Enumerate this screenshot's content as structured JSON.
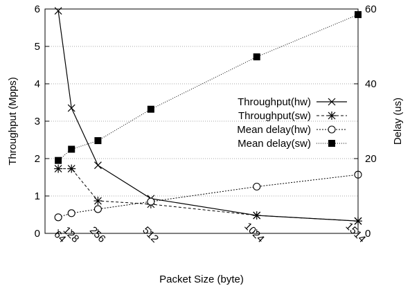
{
  "chart_data": {
    "type": "line",
    "xlabel": "Packet Size (byte)",
    "ylabel": "Throughput (Mpps)",
    "y2label": "Delay (us)",
    "x_ticks": [
      64,
      128,
      256,
      512,
      1024,
      1514
    ],
    "xlim": [
      0,
      1514
    ],
    "ylim": [
      0,
      6
    ],
    "y2lim": [
      0,
      60
    ],
    "y_ticks": [
      0,
      1,
      2,
      3,
      4,
      5,
      6
    ],
    "y2_ticks": [
      0,
      20,
      40,
      60
    ],
    "grid": "horizontal dotted lines at left-axis ticks",
    "legend_position": "center-right",
    "series": [
      {
        "name": "Throughput(hw)",
        "axis": "left",
        "marker": "x",
        "line": "solid",
        "color": "#000000",
        "x": [
          64,
          128,
          256,
          512,
          1024,
          1514
        ],
        "y": [
          5.95,
          3.35,
          1.82,
          0.93,
          0.48,
          0.33
        ]
      },
      {
        "name": "Throughput(sw)",
        "axis": "left",
        "marker": "asterisk",
        "line": "dashed",
        "color": "#000000",
        "x": [
          64,
          128,
          256,
          512,
          1024,
          1514
        ],
        "y": [
          1.73,
          1.73,
          0.87,
          0.78,
          0.48,
          0.33
        ]
      },
      {
        "name": "Mean delay(hw)",
        "axis": "right",
        "marker": "open-circle",
        "line": "dotted",
        "color": "#000000",
        "x": [
          64,
          128,
          256,
          512,
          1024,
          1514
        ],
        "y": [
          4.3,
          5.4,
          6.5,
          8.5,
          12.5,
          15.7
        ]
      },
      {
        "name": "Mean delay(sw)",
        "axis": "right",
        "marker": "filled-square",
        "line": "dotted-fine",
        "color": "#000000",
        "x": [
          64,
          128,
          256,
          512,
          1024,
          1514
        ],
        "y": [
          19.5,
          22.5,
          24.8,
          33.2,
          47.2,
          58.5
        ]
      }
    ]
  }
}
